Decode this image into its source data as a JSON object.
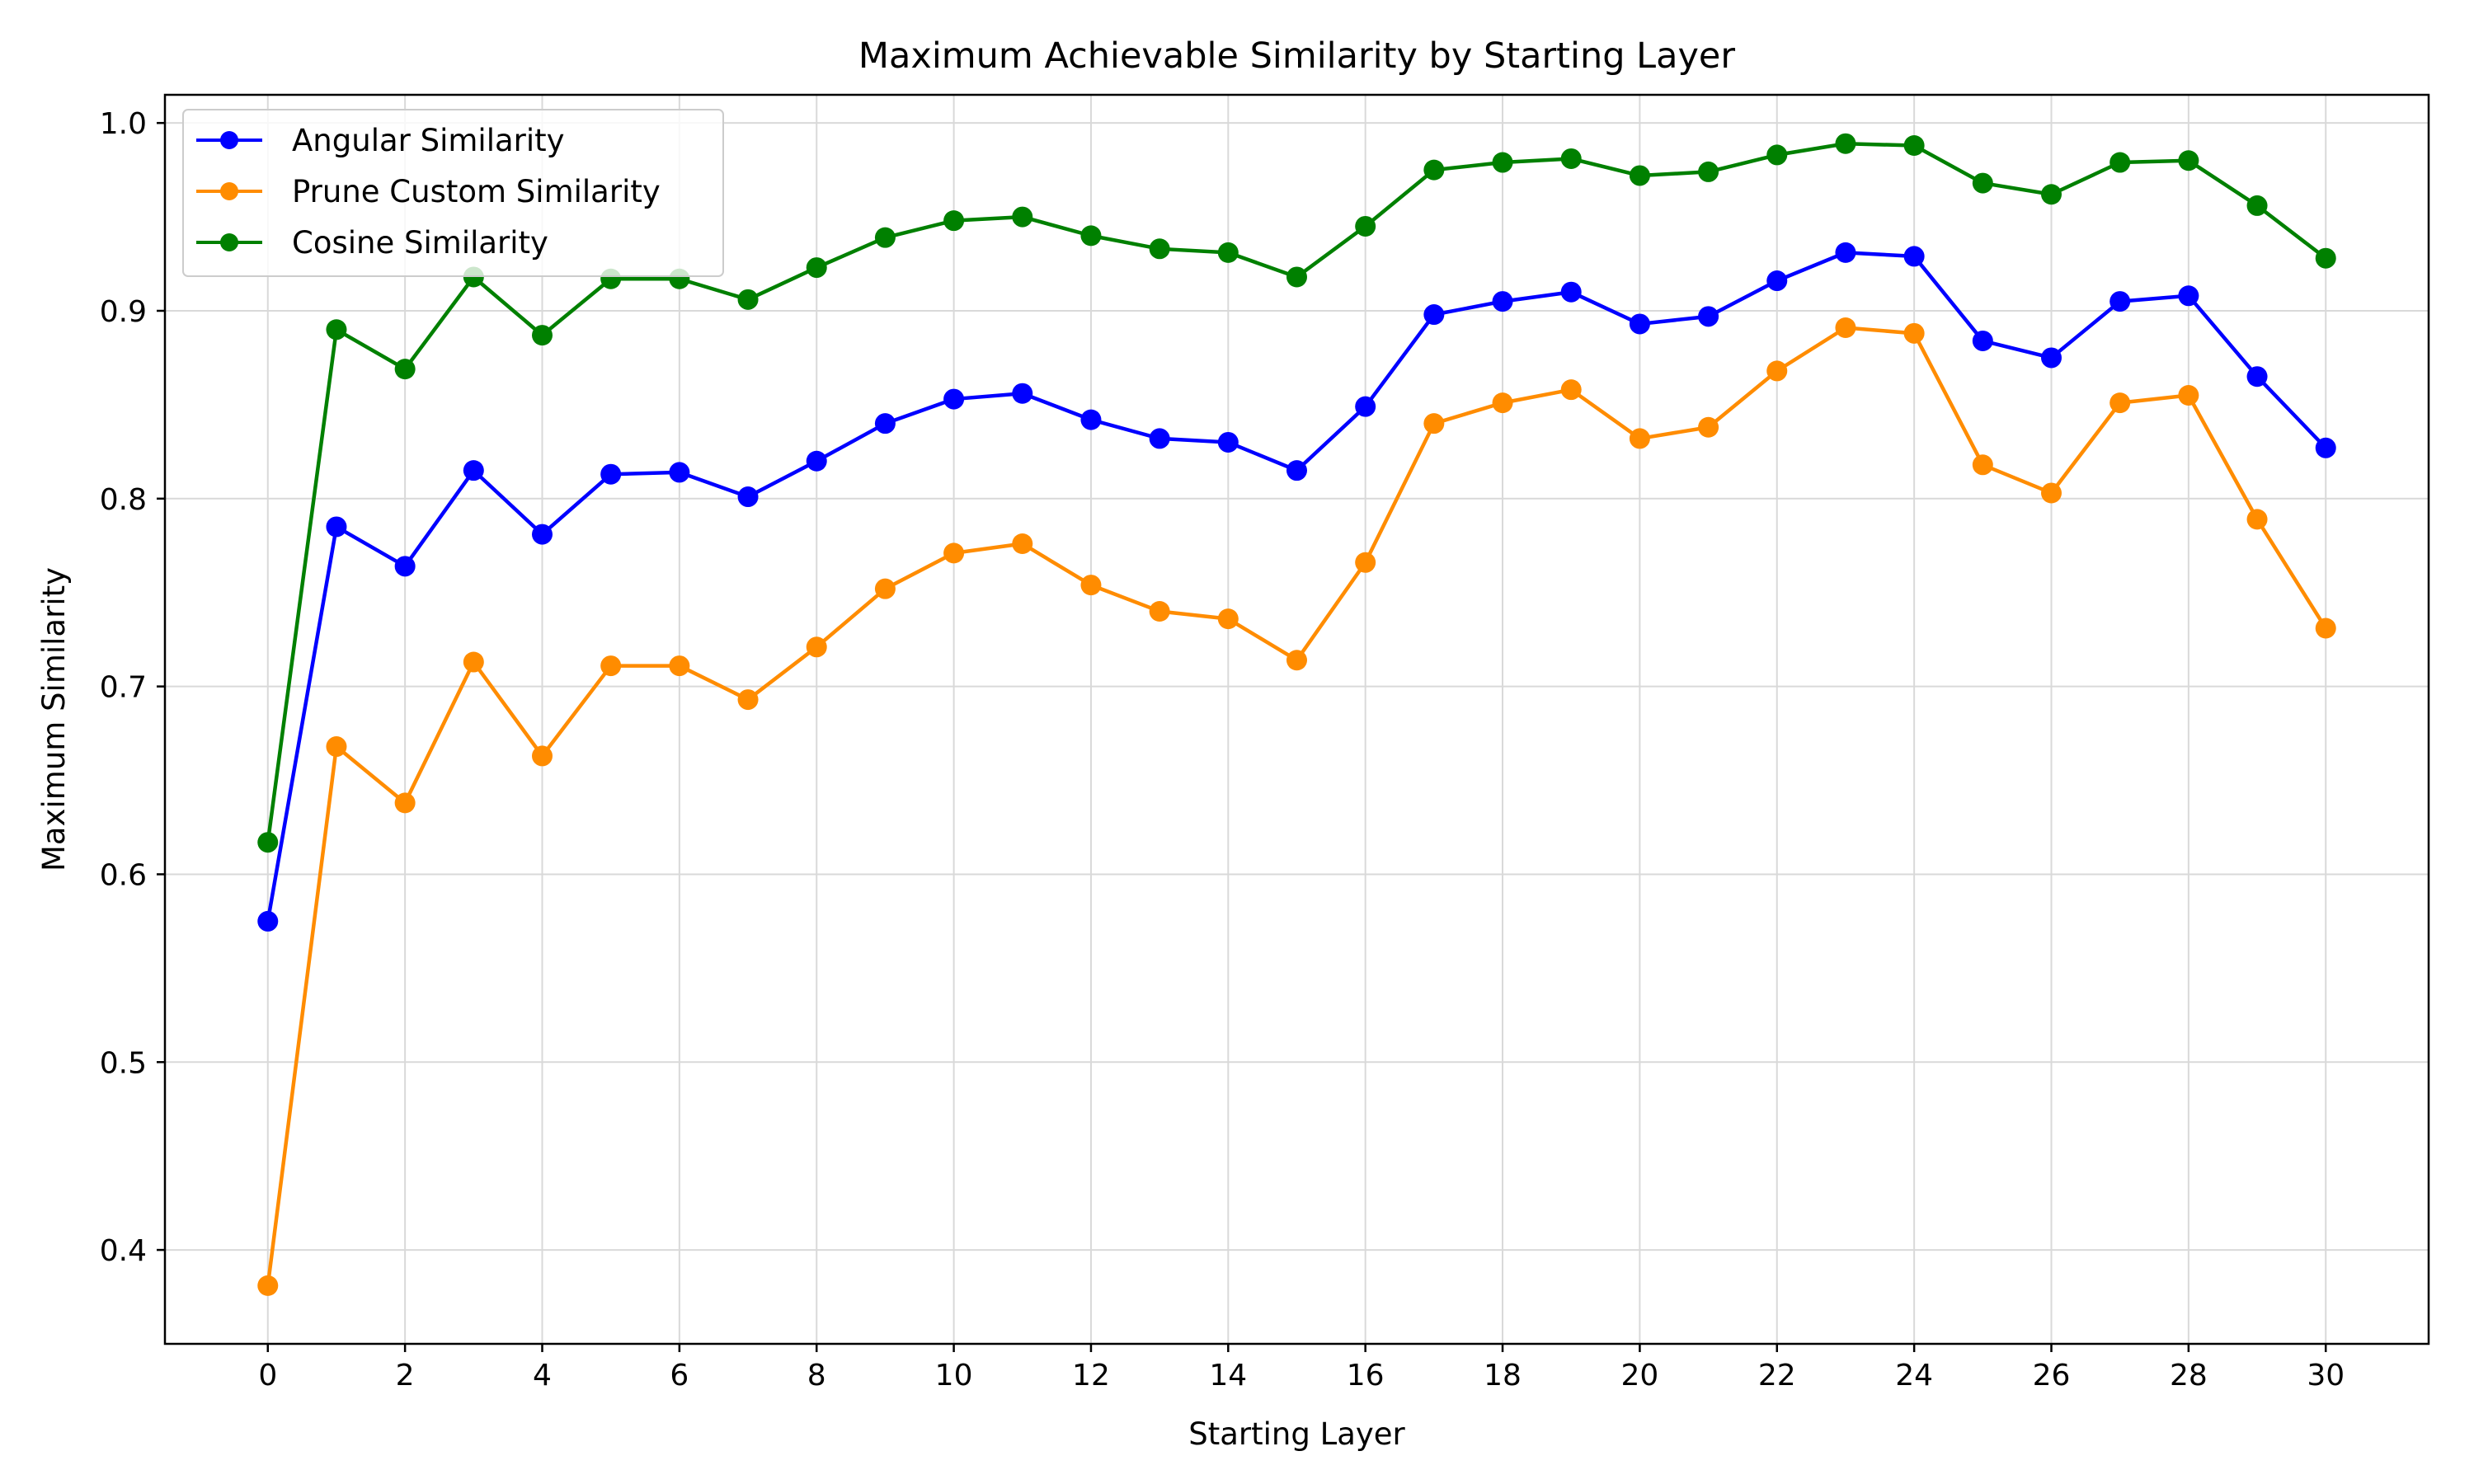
{
  "chart_data": {
    "type": "line",
    "title": "Maximum Achievable Similarity by Starting Layer",
    "xlabel": "Starting Layer",
    "ylabel": "Maximum Similarity",
    "x": [
      0,
      1,
      2,
      3,
      4,
      5,
      6,
      7,
      8,
      9,
      10,
      11,
      12,
      13,
      14,
      15,
      16,
      17,
      18,
      19,
      20,
      21,
      22,
      23,
      24,
      25,
      26,
      27,
      28,
      29,
      30
    ],
    "xlim": [
      -1.5,
      31.5
    ],
    "ylim": [
      0.35,
      1.015
    ],
    "xticks": [
      0,
      2,
      4,
      6,
      8,
      10,
      12,
      14,
      16,
      18,
      20,
      22,
      24,
      26,
      28,
      30
    ],
    "xtick_labels": [
      "0",
      "2",
      "4",
      "6",
      "8",
      "10",
      "12",
      "14",
      "16",
      "18",
      "20",
      "22",
      "24",
      "26",
      "28",
      "30"
    ],
    "yticks": [
      0.4,
      0.5,
      0.6,
      0.7,
      0.8,
      0.9,
      1.0
    ],
    "ytick_labels": [
      "0.4",
      "0.5",
      "0.6",
      "0.7",
      "0.8",
      "0.9",
      "1.0"
    ],
    "grid": true,
    "legend_position": "upper-left",
    "series": [
      {
        "name": "Angular Similarity",
        "color": "#0000ff",
        "marker": "circle",
        "values": [
          0.575,
          0.785,
          0.764,
          0.815,
          0.781,
          0.813,
          0.814,
          0.801,
          0.82,
          0.84,
          0.853,
          0.856,
          0.842,
          0.832,
          0.83,
          0.815,
          0.849,
          0.898,
          0.905,
          0.91,
          0.893,
          0.897,
          0.916,
          0.931,
          0.929,
          0.884,
          0.875,
          0.905,
          0.908,
          0.865,
          0.827
        ]
      },
      {
        "name": "Prune Custom Similarity",
        "color": "#ff8c00",
        "marker": "circle",
        "values": [
          0.381,
          0.668,
          0.638,
          0.713,
          0.663,
          0.711,
          0.711,
          0.693,
          0.721,
          0.752,
          0.771,
          0.776,
          0.754,
          0.74,
          0.736,
          0.714,
          0.766,
          0.84,
          0.851,
          0.858,
          0.832,
          0.838,
          0.868,
          0.891,
          0.888,
          0.818,
          0.803,
          0.851,
          0.855,
          0.789,
          0.731
        ]
      },
      {
        "name": "Cosine Similarity",
        "color": "#008000",
        "marker": "circle",
        "values": [
          0.617,
          0.89,
          0.869,
          0.918,
          0.887,
          0.917,
          0.917,
          0.906,
          0.923,
          0.939,
          0.948,
          0.95,
          0.94,
          0.933,
          0.931,
          0.918,
          0.945,
          0.975,
          0.979,
          0.981,
          0.972,
          0.974,
          0.983,
          0.989,
          0.988,
          0.968,
          0.962,
          0.979,
          0.98,
          0.956,
          0.928
        ]
      }
    ]
  }
}
